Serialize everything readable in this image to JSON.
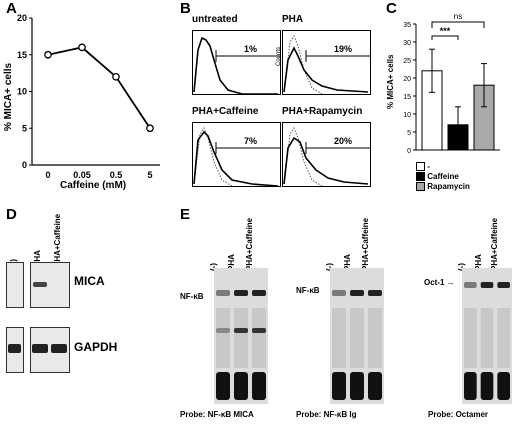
{
  "panels": {
    "A": {
      "label": "A",
      "ylabel": "% MICA+ cells",
      "xlabel": "Caffeine (mM)",
      "yticks": [
        "0",
        "5",
        "10",
        "15",
        "20"
      ],
      "xticks": [
        "0",
        "0.05",
        "0.5",
        "5"
      ]
    },
    "B": {
      "label": "B",
      "hist": [
        {
          "title": "untreated",
          "pct": "1%"
        },
        {
          "title": "PHA",
          "pct": "19%"
        },
        {
          "title": "PHA+Caffeine",
          "pct": "7%"
        },
        {
          "title": "PHA+Rapamycin",
          "pct": "20%"
        }
      ],
      "counts_label": "Counts"
    },
    "C": {
      "label": "C",
      "ylabel": "% MICA+ cells",
      "yticks": [
        "0",
        "5",
        "10",
        "15",
        "20",
        "25",
        "30",
        "35"
      ],
      "sig1": "***",
      "sig2": "ns",
      "legend": [
        "-",
        "Caffeine",
        "Rapamycin"
      ],
      "colors": [
        "#ffffff",
        "#000000",
        "#a9a9a9"
      ]
    },
    "D": {
      "label": "D",
      "lanes": [
        "(-)",
        "PHA",
        "PHA+Caffeine"
      ],
      "rows": [
        "MICA",
        "GAPDH"
      ]
    },
    "E": {
      "label": "E",
      "gels": [
        {
          "lanes": [
            "(-)",
            "PHA",
            "PHA+Caffeine"
          ],
          "band": "NF-κB",
          "probe_label": "Probe:",
          "probe": "NF-κB MICA"
        },
        {
          "lanes": [
            "(-)",
            "PHA",
            "PHA+Caffeine"
          ],
          "band": "NF-κB",
          "probe_label": "Probe:",
          "probe": "NF-κB Ig"
        },
        {
          "lanes": [
            "(-)",
            "PHA",
            "PHA+Caffeine"
          ],
          "band": "Oct-1",
          "probe_label": "Probe:",
          "probe": "Octamer"
        }
      ]
    }
  },
  "chart_data": [
    {
      "type": "line",
      "x": [
        "0",
        "0.05",
        "0.5",
        "5"
      ],
      "series": [
        {
          "values": [
            15,
            16,
            12,
            5
          ]
        }
      ],
      "xlabel": "Caffeine (mM)",
      "ylabel": "% MICA+ cells",
      "ylim": [
        0,
        20
      ]
    },
    {
      "type": "bar",
      "categories": [
        "-",
        "Caffeine",
        "Rapamycin"
      ],
      "values": [
        22,
        7,
        18
      ],
      "errors": [
        6,
        5,
        6
      ],
      "ylabel": "% MICA+ cells",
      "ylim": [
        0,
        35
      ]
    }
  ]
}
